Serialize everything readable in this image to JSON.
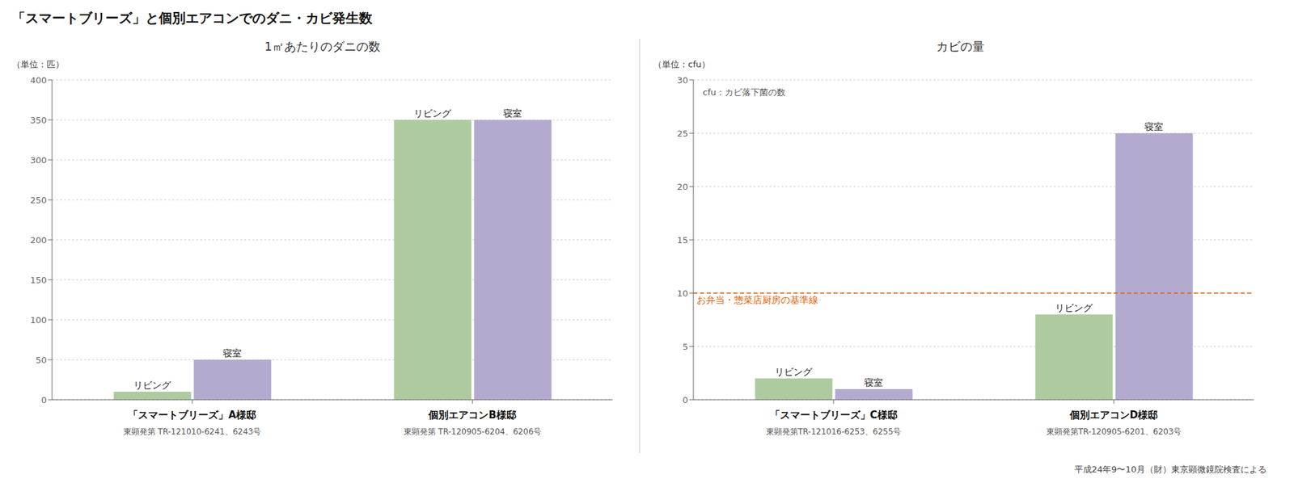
{
  "title": "「スマートブリーズ」と個別エアコンでのダニ・カビ発生数",
  "footer": "平成24年9〜10月（財）東京顕微鏡院検査による",
  "chart_data": [
    {
      "type": "bar",
      "title": "1㎡あたりのダニの数",
      "ylabel": "（単位：匹）",
      "categories": [
        "「スマートブリーズ」A様邸",
        "個別エアコンB様邸"
      ],
      "category_notes": [
        "東顕発第 TR-121010-6241、6243号",
        "東顕発第 TR-120905-6204、6206号"
      ],
      "series": [
        {
          "name": "リビング",
          "color": "#aecba0",
          "values": [
            10,
            350
          ]
        },
        {
          "name": "寝室",
          "color": "#b4aacf",
          "values": [
            50,
            350
          ]
        }
      ],
      "ylim": [
        0,
        400
      ],
      "yticks": [
        0,
        50,
        100,
        150,
        200,
        250,
        300,
        350,
        400
      ],
      "grid": true
    },
    {
      "type": "bar",
      "title": "カビの量",
      "ylabel": "（単位：cfu）",
      "annotation": "cfu：カビ落下菌の数",
      "categories": [
        "「スマートブリーズ」C様邸",
        "個別エアコンD様邸"
      ],
      "category_notes": [
        "東顕発第TR-121016-6253、6255号",
        "東顕発第TR-120905-6201、6203号"
      ],
      "series": [
        {
          "name": "リビング",
          "color": "#aecba0",
          "values": [
            2,
            8
          ]
        },
        {
          "name": "寝室",
          "color": "#b4aacf",
          "values": [
            1,
            25
          ]
        }
      ],
      "ylim": [
        0,
        30
      ],
      "yticks": [
        0,
        5,
        10,
        15,
        20,
        25,
        30
      ],
      "grid": true,
      "reference_line": {
        "value": 10,
        "label": "お弁当・惣菜店厨房の基準線",
        "color": "#d96000",
        "line_style": "dashed"
      }
    }
  ]
}
